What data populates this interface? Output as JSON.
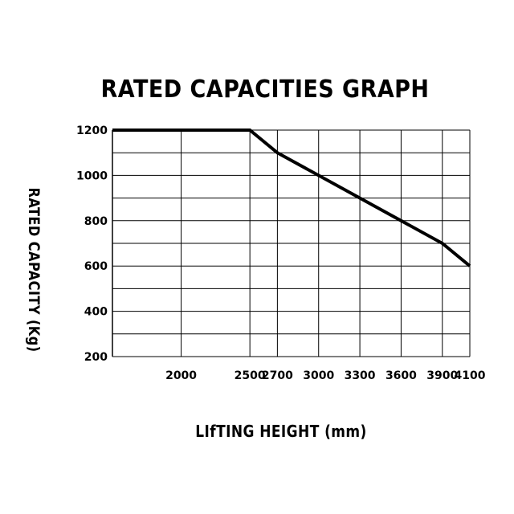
{
  "chart_data": {
    "type": "line",
    "title": "RATED CAPACITIES GRAPH",
    "xlabel": "LIfTING HEIGHT (mm)",
    "ylabel": "RATED CAPACITY (Kg)",
    "xlim": [
      1500,
      4100
    ],
    "ylim": [
      200,
      1200
    ],
    "x_ticks": [
      2000,
      2500,
      2700,
      3000,
      3300,
      3600,
      3900,
      4100
    ],
    "x_tick_labels": [
      "2000",
      "2500",
      "2700",
      "3000",
      "3300",
      "3600",
      "3900",
      "4100"
    ],
    "y_ticks": [
      200,
      400,
      600,
      800,
      1000,
      1200
    ],
    "y_tick_labels": [
      "200",
      "400",
      "600",
      "800",
      "1000",
      "1200"
    ],
    "y_minor_gridlines": [
      300,
      500,
      700,
      900,
      1100
    ],
    "grid": true,
    "series": [
      {
        "x": [
          1500,
          2500,
          2700,
          3900,
          4100
        ],
        "y": [
          1200,
          1200,
          1100,
          700,
          600
        ]
      }
    ],
    "line_color": "#000000",
    "grid_color": "#000000",
    "background_color": "#ffffff"
  }
}
